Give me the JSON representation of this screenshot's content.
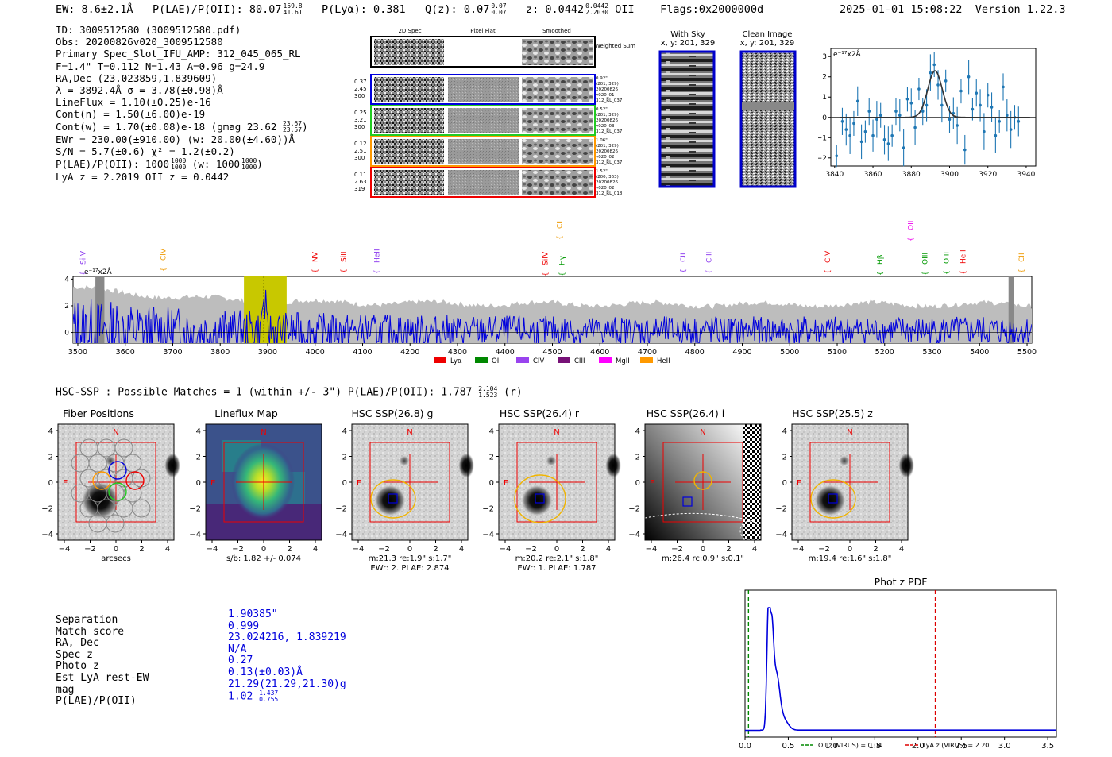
{
  "header": {
    "ew": "EW: 8.6±2.1Å",
    "plae_label": "P(LAE)/P(OII): 80.07",
    "plae_hi": "159.8",
    "plae_lo": "41.61",
    "plya": "P(Lyα): 0.381",
    "qz_label": "Q(z): 0.07",
    "qz_hi": "0.07",
    "qz_lo": "0.07",
    "z_label": "z: 0.0442",
    "z_hi": "0.0442",
    "z_lo": "2.2030",
    "z_line": "OII",
    "flags": "Flags:0x2000000d",
    "timestamp": "2025-01-01 15:08:22",
    "version": "Version 1.22.3"
  },
  "info": {
    "id": "ID: 3009512580 (3009512580.pdf)",
    "obs": "Obs: 20200826v020_3009512580",
    "slot": "Primary Spec_Slot_IFU_AMP: 312_045_065_RL",
    "params": "F=1.4\"  T=0.112  N=1.43  A=0.96  g=24.9",
    "radec": "RA,Dec (23.023859,1.839609)",
    "lambda": "λ = 3892.4Å   σ = 3.78(±0.98)Å",
    "lineflux": "LineFlux = 1.10(±0.25)e-16",
    "contn": "Cont(n) = 1.50(±6.00)e-19",
    "contw": "Cont(w) = 1.70(±0.08)e-18 (gmag 23.62",
    "contw_hi": "23.67",
    "contw_lo": "23.57",
    "ewr": "EWr = 230.00(±910.00) (w: 20.00(±4.60))Å",
    "sn": "S/N = 5.7(±0.6)  χ² = 1.2(±0.2)",
    "plae": "P(LAE)/P(OII): 1000",
    "plae_hi": "1000",
    "plae_lo": "1000",
    "plae_w": "(w: 1000",
    "plae_w_hi": "1000",
    "plae_w_lo": "1000",
    "lyaz": "LyA z = 2.2019   OII z = 0.0442"
  },
  "cutouts": {
    "headers": [
      "2D Spec",
      "Pixel Flat",
      "Smoothed"
    ],
    "weighted": "Weighted Sum",
    "rows": [
      {
        "left": [
          "0.37",
          "2.45",
          "300"
        ],
        "right": [
          "0.92\"",
          "(201, 329)",
          "20200826",
          "v020_01",
          "312_RL_037"
        ],
        "color": "#0000dd"
      },
      {
        "left": [
          "0.25",
          "3.21",
          "300"
        ],
        "right": [
          "0.52\"",
          "(201, 329)",
          "20200826",
          "v020_03",
          "312_RL_037"
        ],
        "color": "#22cc22"
      },
      {
        "left": [
          "0.12",
          "2.51",
          "300"
        ],
        "right": [
          "1.06\"",
          "(201, 329)",
          "20200826",
          "v020_02",
          "312_RL_037"
        ],
        "color": "#ff9900"
      },
      {
        "left": [
          "0.11",
          "2.63",
          "319"
        ],
        "right": [
          "1.52\"",
          "(200, 363)",
          "20200826",
          "v020_02",
          "312_RL_018"
        ],
        "color": "#ee0000"
      }
    ],
    "with_sky_title": "With Sky",
    "with_sky_sub": "x, y: 201, 329",
    "clean_title": "Clean Image",
    "clean_sub": "x, y: 201, 329"
  },
  "small_spec": {
    "unit": "e⁻¹⁷x2Å",
    "xticks": [
      "3840",
      "3860",
      "3880",
      "3900",
      "3920",
      "3940"
    ],
    "yticks": [
      "3",
      "2",
      "1",
      "0",
      "−1",
      "−2"
    ]
  },
  "full_spec": {
    "unit": "e⁻¹⁷x2Å",
    "xticks": [
      "3500",
      "3600",
      "3700",
      "3800",
      "3900",
      "4000",
      "4100",
      "4200",
      "4300",
      "4400",
      "4500",
      "4600",
      "4700",
      "4800",
      "4900",
      "5000",
      "5100",
      "5200",
      "5300",
      "5400",
      "5500"
    ],
    "yticks": [
      "4",
      "2",
      "0"
    ],
    "lines": [
      {
        "name": "SiIV",
        "color": "#8833ee"
      },
      {
        "name": "CIV",
        "color": "#ee9900"
      },
      {
        "name": "NV",
        "color": "#ee0000"
      },
      {
        "name": "SiII",
        "color": "#ee0000"
      },
      {
        "name": "HeII",
        "color": "#8833ee"
      },
      {
        "name": "SiIV",
        "color": "#ee0000"
      },
      {
        "name": "CIII",
        "color": "#ee9900"
      },
      {
        "name": "Hγ",
        "color": "#009900"
      },
      {
        "name": "CII",
        "color": "#8833ee"
      },
      {
        "name": "CIII",
        "color": "#8833ee"
      },
      {
        "name": "CIV",
        "color": "#ee0000"
      },
      {
        "name": "Hβ",
        "color": "#009900"
      },
      {
        "name": "OII",
        "color": "#ee00ee"
      },
      {
        "name": "OIII",
        "color": "#009900"
      },
      {
        "name": "OIII",
        "color": "#009900"
      },
      {
        "name": "HeII",
        "color": "#ee0000"
      },
      {
        "name": "CII",
        "color": "#ee9900"
      }
    ],
    "legend": [
      {
        "name": "Lyα",
        "color": "#ee0000"
      },
      {
        "name": "OII",
        "color": "#008800"
      },
      {
        "name": "CIV",
        "color": "#9944ee"
      },
      {
        "name": "CIII",
        "color": "#771177"
      },
      {
        "name": "MgII",
        "color": "#ff00ff"
      },
      {
        "name": "HeII",
        "color": "#ff9900"
      }
    ]
  },
  "hsc": {
    "title": "HSC-SSP : Possible Matches = 1 (within +/- 3\")  P(LAE)/P(OII): 1.787",
    "title_hi": "2.104",
    "title_lo": "1.523",
    "title_band": "(r)",
    "panels": [
      {
        "title": "Fiber Positions",
        "cap1": "arcsecs",
        "cap2": ""
      },
      {
        "title": "Lineflux Map",
        "cap1": "s/b: 1.82 +/- 0.074",
        "cap2": ""
      },
      {
        "title": "HSC SSP(26.8) g",
        "cap1": "m:21.3  re:1.9\"  s:1.7\"",
        "cap2": "EWr: 2. PLAE: 2.874"
      },
      {
        "title": "HSC SSP(26.4) r",
        "cap1": "m:20.2  re:2.1\"  s:1.8\"",
        "cap2": "EWr: 1. PLAE: 1.787"
      },
      {
        "title": "HSC SSP(26.4) i",
        "cap1": "m:26.4 rc:0.9\"  s:0.1\"",
        "cap2": ""
      },
      {
        "title": "HSC SSP(25.5) z",
        "cap1": "m:19.4  re:1.6\"  s:1.8\"",
        "cap2": ""
      }
    ],
    "ticks": [
      "4",
      "2",
      "0",
      "−2",
      "−4"
    ],
    "xticks": [
      "−4",
      "−2",
      "0",
      "2",
      "4"
    ],
    "compass_n": "N",
    "compass_e": "E"
  },
  "match": {
    "labels": [
      "Separation",
      "Match score",
      "RA, Dec",
      "Spec z",
      "Photo z",
      "Est LyA rest-EW",
      "mag",
      "P(LAE)/P(OII)"
    ],
    "values": [
      "1.90385\"",
      "0.999",
      "23.024216, 1.839219",
      "N/A",
      "0.27",
      "0.13(±0.03)Å",
      "21.29(21.29,21.30)g",
      "1.02"
    ],
    "plae_hi": "1.437",
    "plae_lo": "0.755"
  },
  "photz": {
    "title": "Phot z PDF",
    "xticks": [
      "0.0",
      "0.5",
      "1.0",
      "1.5",
      "2.0",
      "2.5",
      "3.0",
      "3.5"
    ],
    "legend_oii": "OII z (VIRUS) = 0.04",
    "legend_lya": "LyA z (VIRUS) = 2.20",
    "oii_z": 0.04,
    "lya_z": 2.2
  },
  "chart_data": [
    {
      "type": "scatter",
      "title": "",
      "xlabel": "",
      "ylabel": "e-17 x2Å",
      "xlim": [
        3838,
        3945
      ],
      "ylim": [
        -2.4,
        3.4
      ],
      "x": [
        3841,
        3844,
        3846,
        3848,
        3850,
        3852,
        3854,
        3856,
        3858,
        3860,
        3862,
        3864,
        3866,
        3868,
        3870,
        3872,
        3874,
        3876,
        3878,
        3880,
        3882,
        3884,
        3886,
        3888,
        3890,
        3892,
        3894,
        3896,
        3898,
        3900,
        3902,
        3904,
        3906,
        3908,
        3910,
        3912,
        3914,
        3916,
        3918,
        3920,
        3922,
        3924,
        3926,
        3928,
        3930,
        3932,
        3934,
        3936
      ],
      "y": [
        -1.9,
        -0.2,
        -0.6,
        -0.9,
        -0.3,
        0.8,
        -1.2,
        -0.7,
        0.3,
        -0.9,
        -0.1,
        0.1,
        -1.1,
        -1.3,
        -0.9,
        0.3,
        0.1,
        -1.5,
        0.9,
        0.7,
        -0.5,
        1.4,
        0.3,
        0.6,
        2.2,
        2.6,
        1.6,
        0.6,
        1.8,
        -0.1,
        0.2,
        -0.4,
        1.3,
        -1.6,
        2.0,
        0.4,
        1.2,
        0.6,
        -0.7,
        1.1,
        0.5,
        -0.9,
        -0.2,
        1.5,
        0.1,
        -0.6,
        0.0,
        -0.2
      ],
      "fit": {
        "center": 3892.4,
        "sigma": 3.78,
        "amp": 2.3
      }
    },
    {
      "type": "line",
      "title": "",
      "xlim": [
        3490,
        5510
      ],
      "ylim": [
        -0.8,
        4.2
      ],
      "xlabel": "",
      "ylabel": "e-17 x2Å",
      "highlight_region": [
        3850,
        3940
      ]
    },
    {
      "type": "line",
      "title": "Phot z PDF",
      "xlim": [
        0.0,
        3.6
      ],
      "peak_z": 0.27
    }
  ]
}
